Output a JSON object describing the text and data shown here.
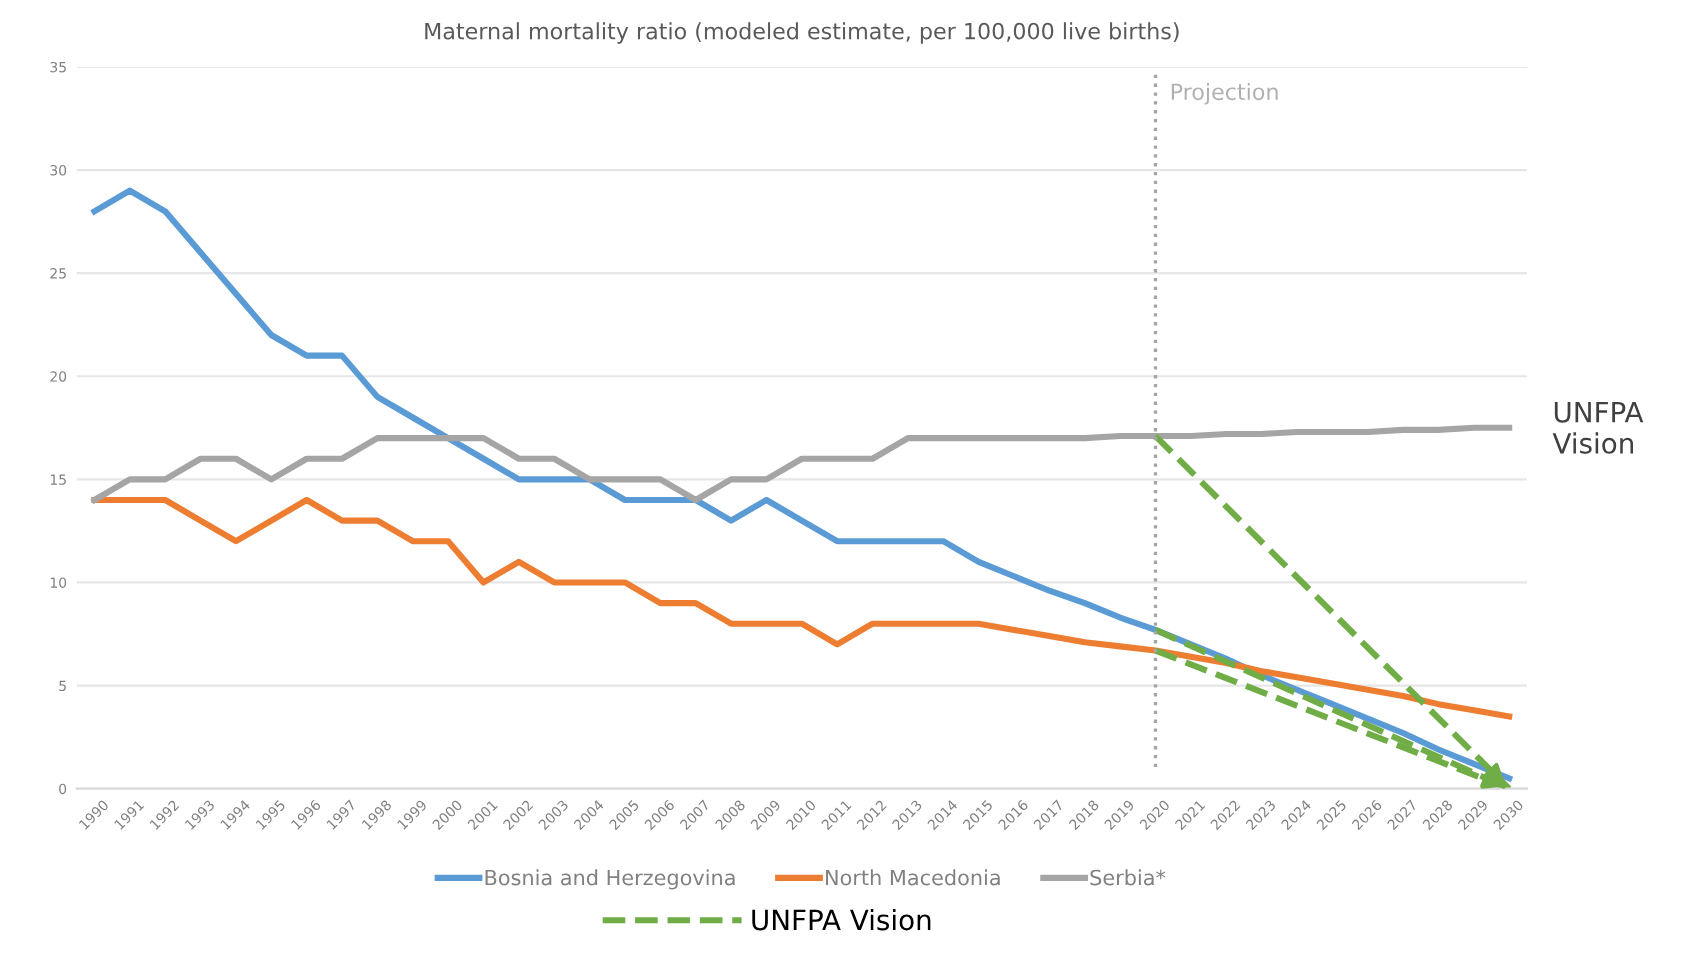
{
  "chart_data": {
    "type": "line",
    "title": "Maternal mortality ratio (modeled estimate, per 100,000 live births)",
    "categories": [
      "1990",
      "1991",
      "1992",
      "1993",
      "1994",
      "1995",
      "1996",
      "1997",
      "1998",
      "1999",
      "2000",
      "2001",
      "2002",
      "2003",
      "2004",
      "2005",
      "2006",
      "2007",
      "2008",
      "2009",
      "2010",
      "2011",
      "2012",
      "2013",
      "2014",
      "2015",
      "2016",
      "2017",
      "2018",
      "2019",
      "2020",
      "2021",
      "2022",
      "2023",
      "2024",
      "2025",
      "2026",
      "2027",
      "2028",
      "2029",
      "2030"
    ],
    "series": [
      {
        "name": "Bosnia and Herzegovina",
        "color": "#5b9bd5",
        "values": [
          28,
          29,
          28,
          26,
          24,
          22,
          21,
          21,
          19,
          18,
          17,
          16,
          15,
          15,
          15,
          14,
          14,
          14,
          13,
          14,
          13,
          12,
          12,
          12,
          12,
          11,
          10.3,
          9.6,
          9.0,
          8.3,
          7.7,
          7.0,
          6.3,
          5.5,
          4.8,
          4.1,
          3.4,
          2.7,
          1.9,
          1.2,
          0.5
        ]
      },
      {
        "name": "North Macedonia",
        "color": "#ed7d31",
        "values": [
          14,
          14,
          14,
          13,
          12,
          13,
          14,
          13,
          13,
          12,
          12,
          10,
          11,
          10,
          10,
          10,
          9,
          9,
          8,
          8,
          8,
          7,
          8,
          8,
          8,
          8,
          7.7,
          7.4,
          7.1,
          6.9,
          6.7,
          6.4,
          6.1,
          5.7,
          5.4,
          5.1,
          4.8,
          4.5,
          4.1,
          3.8,
          3.5
        ]
      },
      {
        "name": "Serbia*",
        "color": "#a5a5a5",
        "values": [
          14,
          15,
          15,
          16,
          16,
          15,
          16,
          16,
          17,
          17,
          17,
          17,
          16,
          16,
          15,
          15,
          15,
          14,
          15,
          15,
          16,
          16,
          16,
          17,
          17,
          17,
          17,
          17,
          17,
          17.1,
          17.1,
          17.1,
          17.2,
          17.2,
          17.3,
          17.3,
          17.3,
          17.4,
          17.4,
          17.5,
          17.5
        ]
      },
      {
        "name": "UNFPA Vision",
        "color": "#70ad47",
        "line_style": "dashed",
        "values": [
          null,
          null,
          null,
          null,
          null,
          null,
          null,
          null,
          null,
          null,
          null,
          null,
          null,
          null,
          null,
          null,
          null,
          null,
          null,
          null,
          null,
          null,
          null,
          null,
          null,
          null,
          null,
          null,
          null,
          null,
          17.1,
          null,
          null,
          null,
          null,
          null,
          null,
          null,
          null,
          null,
          0
        ]
      },
      {
        "color": "#70ad47",
        "line_style": "dashed",
        "values": [
          null,
          null,
          null,
          null,
          null,
          null,
          null,
          null,
          null,
          null,
          null,
          null,
          null,
          null,
          null,
          null,
          null,
          null,
          null,
          null,
          null,
          null,
          null,
          null,
          null,
          null,
          null,
          null,
          null,
          null,
          7.7,
          null,
          null,
          null,
          null,
          null,
          null,
          null,
          null,
          null,
          0
        ]
      },
      {
        "color": "#70ad47",
        "line_style": "dashed",
        "values": [
          null,
          null,
          null,
          null,
          null,
          null,
          null,
          null,
          null,
          null,
          null,
          null,
          null,
          null,
          null,
          null,
          null,
          null,
          null,
          null,
          null,
          null,
          null,
          null,
          null,
          null,
          null,
          null,
          null,
          null,
          6.7,
          null,
          null,
          null,
          null,
          null,
          null,
          null,
          null,
          null,
          0
        ]
      }
    ],
    "ylim": [
      0,
      35
    ],
    "yticks": [
      0,
      5,
      10,
      15,
      20,
      25,
      30,
      35
    ],
    "grid": "y",
    "legend": "bottom",
    "line_style": "solid",
    "ref_lines": [
      {
        "axis": "x",
        "value": "2020",
        "label": "Projection",
        "color": "#a5a5a5",
        "line_style": "dotted"
      }
    ],
    "annotations": [
      "UNFPA Vision"
    ]
  }
}
